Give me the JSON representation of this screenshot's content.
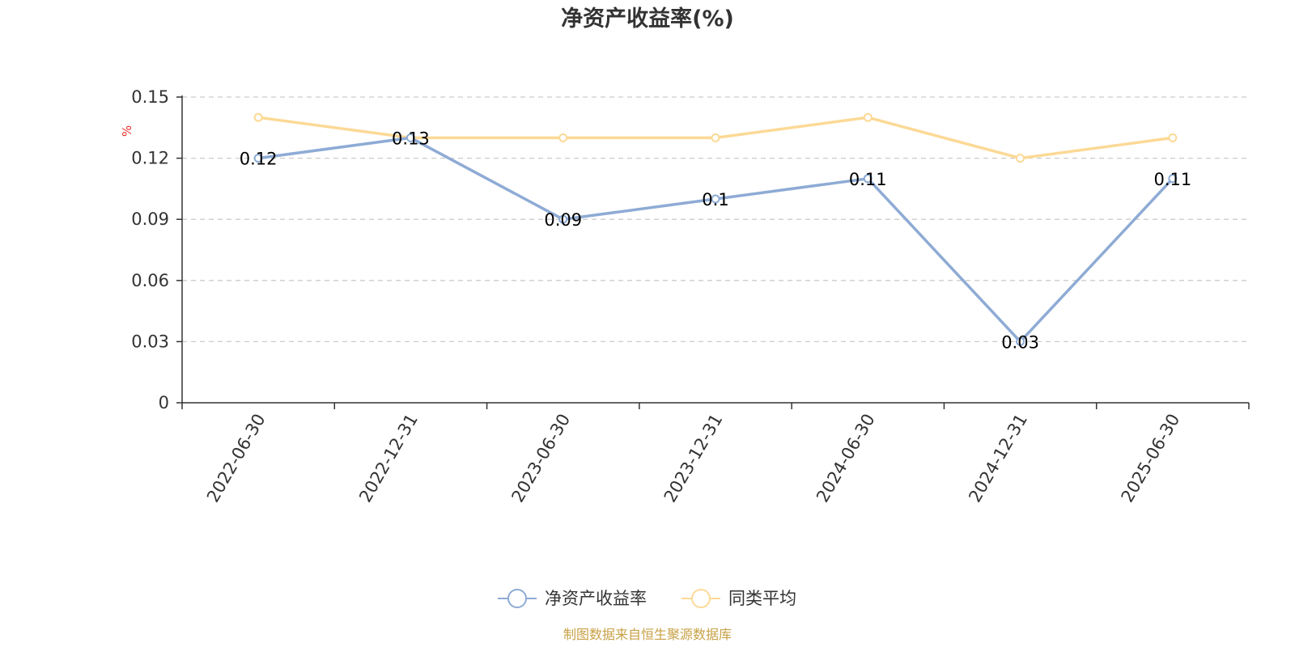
{
  "chart_data": {
    "type": "line",
    "title": "净资产收益率(%)",
    "ylabel": "%",
    "categories": [
      "2022-06-30",
      "2022-12-31",
      "2023-06-30",
      "2023-12-31",
      "2024-06-30",
      "2024-12-31",
      "2025-06-30"
    ],
    "yticks": [
      "0",
      "0.03",
      "0.06",
      "0.09",
      "0.12",
      "0.15"
    ],
    "ylim": [
      0,
      0.15
    ],
    "grid": true,
    "legend_position": "bottom",
    "series": [
      {
        "name": "净资产收益率",
        "values": [
          0.12,
          0.13,
          0.09,
          0.1,
          0.11,
          0.03,
          0.11
        ],
        "labels": [
          "0.12",
          "0.13",
          "0.09",
          "0.1",
          "0.11",
          "0.03",
          "0.11"
        ],
        "color": "#8eabd5",
        "show_labels": true
      },
      {
        "name": "同类平均",
        "values": [
          0.14,
          0.13,
          0.13,
          0.13,
          0.14,
          0.12,
          0.13
        ],
        "color": "#fcd996",
        "show_labels": false
      }
    ]
  },
  "source": "制图数据来自恒生聚源数据库",
  "colors": {
    "unit": "#e8302f",
    "source": "#c8a146",
    "axis": "#333333",
    "grid": "#cccccc"
  }
}
